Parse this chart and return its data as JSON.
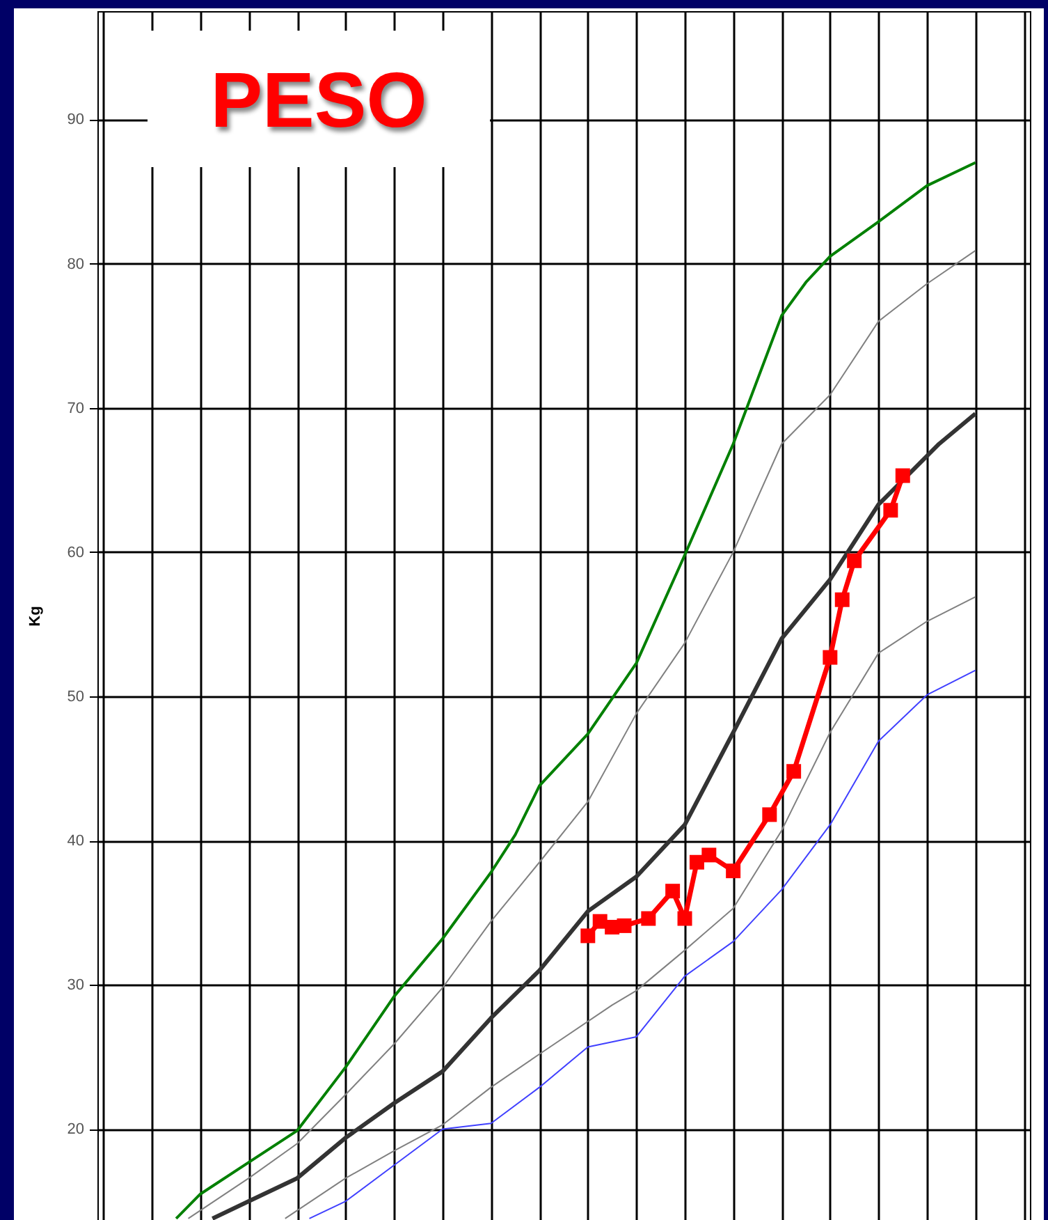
{
  "chart_data": {
    "type": "line",
    "title": "PESO",
    "ylabel": "Kg",
    "categories": [
      null,
      null,
      null,
      null,
      null,
      null,
      null,
      null,
      null,
      null,
      null,
      null,
      null,
      null,
      null,
      null,
      null,
      null,
      null,
      null,
      null,
      null,
      null,
      null,
      null,
      null,
      null,
      null,
      null,
      null,
      null,
      null,
      null,
      null,
      null,
      null,
      null,
      null,
      null,
      null,
      null,
      null,
      null,
      null,
      null,
      null,
      null,
      null,
      null,
      null,
      null,
      null,
      null,
      null,
      null,
      null,
      null,
      null,
      null,
      null,
      null,
      null,
      null,
      null,
      null,
      null,
      null,
      null,
      null,
      null,
      null,
      null,
      null,
      null,
      null,
      null,
      null
    ],
    "series": [
      {
        "color": "#008000",
        "marker": "none",
        "values": [
          null,
          null,
          null,
          null,
          null,
          null,
          13.8,
          null,
          15.5,
          null,
          null,
          null,
          17.7,
          null,
          null,
          null,
          19.9,
          null,
          null,
          null,
          24.3,
          null,
          null,
          null,
          29.2,
          null,
          null,
          null,
          33.2,
          null,
          null,
          null,
          37.8,
          null,
          40.4,
          null,
          43.8,
          null,
          null,
          null,
          47.4,
          null,
          null,
          null,
          52.3,
          null,
          null,
          null,
          59.8,
          null,
          null,
          null,
          67.5,
          null,
          null,
          null,
          76.4,
          null,
          78.7,
          null,
          80.5,
          null,
          null,
          null,
          82.9,
          null,
          null,
          null,
          85.4,
          null,
          null,
          null,
          87.0,
          null,
          null,
          null,
          null
        ]
      },
      {
        "color": "#808080",
        "marker": "none",
        "values": [
          null,
          null,
          null,
          null,
          null,
          null,
          null,
          13.8,
          null,
          null,
          null,
          null,
          16.6,
          null,
          null,
          null,
          19.0,
          null,
          null,
          null,
          22.4,
          null,
          null,
          null,
          25.9,
          null,
          null,
          null,
          29.8,
          null,
          null,
          null,
          34.4,
          null,
          null,
          null,
          38.5,
          null,
          null,
          null,
          42.7,
          null,
          null,
          null,
          48.8,
          null,
          null,
          null,
          53.7,
          null,
          null,
          null,
          60.0,
          null,
          null,
          null,
          67.5,
          null,
          null,
          null,
          70.9,
          null,
          null,
          null,
          76.0,
          null,
          null,
          null,
          78.6,
          null,
          null,
          null,
          80.9,
          null,
          null,
          null,
          null
        ]
      },
      {
        "color": "#333333",
        "marker": "none",
        "values": [
          null,
          null,
          null,
          null,
          null,
          null,
          null,
          null,
          null,
          13.8,
          null,
          null,
          15.0,
          null,
          null,
          null,
          16.6,
          null,
          null,
          null,
          19.4,
          null,
          null,
          null,
          21.8,
          null,
          null,
          null,
          24.0,
          null,
          null,
          null,
          27.7,
          null,
          null,
          null,
          31.0,
          null,
          null,
          null,
          35.1,
          null,
          null,
          null,
          37.5,
          null,
          null,
          null,
          41.1,
          null,
          null,
          null,
          47.5,
          null,
          null,
          null,
          54.0,
          null,
          null,
          null,
          58.1,
          null,
          null,
          null,
          63.3,
          null,
          null,
          null,
          null,
          67.5,
          null,
          null,
          69.6,
          null,
          null,
          null,
          null
        ]
      },
      {
        "color": "#808080",
        "marker": "none",
        "values": [
          null,
          null,
          null,
          null,
          null,
          null,
          null,
          null,
          null,
          null,
          null,
          null,
          null,
          null,
          null,
          13.8,
          null,
          null,
          null,
          null,
          16.6,
          null,
          null,
          null,
          18.5,
          null,
          null,
          null,
          20.3,
          null,
          null,
          null,
          22.9,
          null,
          null,
          null,
          25.2,
          null,
          null,
          null,
          null,
          null,
          28.6,
          null,
          29.6,
          null,
          null,
          null,
          32.4,
          null,
          null,
          null,
          35.3,
          null,
          null,
          null,
          40.7,
          null,
          null,
          null,
          47.5,
          null,
          null,
          null,
          53.0,
          null,
          null,
          null,
          55.2,
          null,
          null,
          null,
          56.9,
          null,
          null,
          null,
          null
        ]
      },
      {
        "color": "#4040ff",
        "marker": "none",
        "values": [
          null,
          null,
          null,
          null,
          null,
          null,
          null,
          null,
          null,
          null,
          null,
          null,
          null,
          null,
          null,
          null,
          null,
          13.8,
          null,
          null,
          15.0,
          null,
          null,
          null,
          17.5,
          null,
          null,
          null,
          20.0,
          null,
          null,
          null,
          20.4,
          null,
          null,
          null,
          22.9,
          null,
          null,
          null,
          25.7,
          null,
          null,
          null,
          26.4,
          null,
          null,
          null,
          30.6,
          null,
          null,
          null,
          33.0,
          null,
          null,
          null,
          36.6,
          null,
          null,
          null,
          41.1,
          null,
          null,
          null,
          46.9,
          null,
          null,
          null,
          50.1,
          null,
          null,
          null,
          51.8,
          null,
          null,
          null,
          null
        ]
      },
      {
        "color": "#ff0000",
        "marker": "square",
        "values": [
          null,
          null,
          null,
          null,
          null,
          null,
          null,
          null,
          null,
          null,
          null,
          null,
          null,
          null,
          null,
          null,
          null,
          null,
          null,
          null,
          null,
          null,
          null,
          null,
          null,
          null,
          null,
          null,
          null,
          null,
          null,
          null,
          null,
          null,
          null,
          null,
          null,
          null,
          null,
          null,
          33.4,
          34.4,
          34.0,
          34.1,
          null,
          34.6,
          null,
          36.5,
          34.6,
          38.5,
          39.0,
          null,
          37.9,
          null,
          null,
          41.8,
          null,
          44.8,
          null,
          null,
          52.7,
          56.7,
          59.4,
          null,
          null,
          62.9,
          65.3,
          null,
          null,
          null,
          null,
          null,
          null,
          null,
          null,
          null,
          null
        ]
      }
    ],
    "ylim": [
      13.7,
      97.5
    ],
    "yticks": [
      20,
      30,
      40,
      50,
      60,
      70,
      80,
      90
    ],
    "grid": true,
    "tick_labels": "y"
  }
}
